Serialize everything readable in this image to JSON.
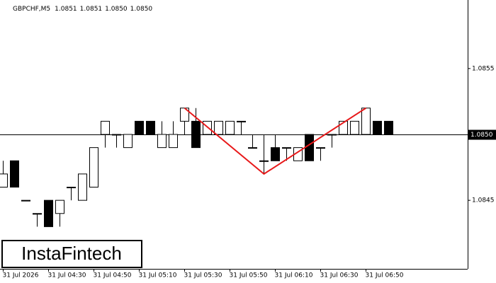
{
  "chart_data": {
    "type": "candlestick",
    "title": "GBPCHF,M5",
    "header_values": [
      "1.0851",
      "1.0851",
      "1.0850",
      "1.0850"
    ],
    "categories": [
      "31 Jul 2026",
      null,
      null,
      null,
      "31 Jul 04:30",
      null,
      null,
      null,
      "31 Jul 04:50",
      null,
      null,
      null,
      "31 Jul 05:10",
      null,
      null,
      null,
      "31 Jul 05:30",
      null,
      null,
      null,
      "31 Jul 05:50",
      null,
      null,
      null,
      "31 Jul 06:10",
      null,
      null,
      null,
      "31 Jul 06:30",
      null,
      null,
      null,
      "31 Jul 06:50",
      null,
      null
    ],
    "open": [
      1.0846,
      1.0848,
      1.0845,
      1.0844,
      1.0845,
      1.0844,
      1.0846,
      1.0845,
      1.0846,
      1.085,
      1.085,
      1.0849,
      1.0851,
      1.0851,
      1.0849,
      1.0849,
      1.0851,
      1.0851,
      1.085,
      1.085,
      1.085,
      1.0851,
      1.0849,
      1.0848,
      1.0849,
      1.0849,
      1.0848,
      1.085,
      1.0849,
      1.085,
      1.085,
      1.085,
      1.085,
      1.0851,
      1.0851
    ],
    "high": [
      1.0848,
      1.0848,
      1.0845,
      1.0844,
      1.0845,
      1.0845,
      1.0846,
      1.0847,
      1.0849,
      1.0851,
      1.085,
      1.085,
      1.0851,
      1.0851,
      1.0851,
      1.0851,
      1.0852,
      1.0852,
      1.0851,
      1.0851,
      1.0851,
      1.0851,
      1.085,
      1.085,
      1.085,
      1.0849,
      1.0849,
      1.085,
      1.0849,
      1.085,
      1.0851,
      1.0851,
      1.0852,
      1.0851,
      1.0851
    ],
    "low": [
      1.0846,
      1.0846,
      1.0845,
      1.0843,
      1.0843,
      1.0843,
      1.0845,
      1.0845,
      1.0846,
      1.0849,
      1.0849,
      1.0849,
      1.085,
      1.085,
      1.0849,
      1.0849,
      1.085,
      1.0849,
      1.085,
      1.085,
      1.085,
      1.085,
      1.0849,
      1.0847,
      1.0848,
      1.0848,
      1.0848,
      1.0848,
      1.0848,
      1.0849,
      1.085,
      1.085,
      1.085,
      1.085,
      1.085
    ],
    "close": [
      1.0847,
      1.0846,
      1.0845,
      1.0844,
      1.0843,
      1.0845,
      1.0846,
      1.0847,
      1.0849,
      1.0851,
      1.085,
      1.085,
      1.085,
      1.085,
      1.085,
      1.085,
      1.0852,
      1.0849,
      1.0851,
      1.0851,
      1.0851,
      1.0851,
      1.0849,
      1.0848,
      1.0848,
      1.0849,
      1.0849,
      1.0848,
      1.0849,
      1.085,
      1.0851,
      1.0851,
      1.0852,
      1.085,
      1.085
    ],
    "up_color": "#ffffff",
    "down_color": "#000000",
    "ylim": [
      1.08398,
      1.08602
    ],
    "yticks": [
      {
        "value": 1.0855,
        "label": "1.0855"
      },
      {
        "value": 1.0845,
        "label": "1.0845"
      }
    ],
    "current_price": {
      "value": 1.085,
      "label": "1.0850"
    },
    "pattern_line": {
      "color": "#e8191a",
      "at": [
        16,
        23,
        32
      ],
      "values": [
        1.0852,
        1.0847,
        1.0852
      ]
    },
    "watermark": "InstaFintech"
  }
}
